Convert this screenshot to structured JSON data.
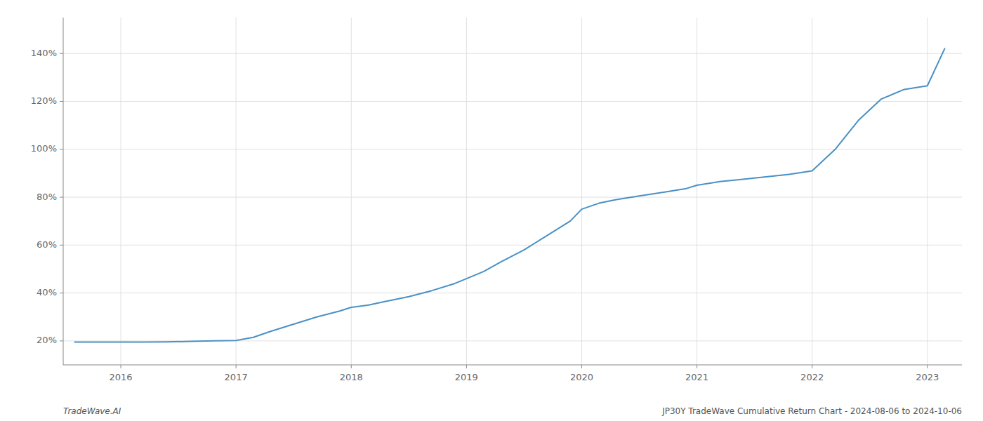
{
  "chart_data": {
    "type": "line",
    "x": [
      2015.6,
      2015.8,
      2016.0,
      2016.2,
      2016.4,
      2016.6,
      2016.8,
      2017.0,
      2017.15,
      2017.3,
      2017.5,
      2017.7,
      2017.9,
      2018.0,
      2018.15,
      2018.3,
      2018.5,
      2018.7,
      2018.9,
      2019.0,
      2019.15,
      2019.3,
      2019.5,
      2019.7,
      2019.9,
      2020.0,
      2020.15,
      2020.3,
      2020.5,
      2020.7,
      2020.9,
      2021.0,
      2021.2,
      2021.4,
      2021.6,
      2021.8,
      2022.0,
      2022.2,
      2022.4,
      2022.6,
      2022.8,
      2023.0,
      2023.15
    ],
    "values": [
      19.5,
      19.5,
      19.5,
      19.5,
      19.6,
      19.8,
      20.0,
      20.2,
      21.5,
      24.0,
      27.0,
      30.0,
      32.5,
      34.0,
      35.0,
      36.5,
      38.5,
      41.0,
      44.0,
      46.0,
      49.0,
      53.0,
      58.0,
      64.0,
      70.0,
      75.0,
      77.5,
      79.0,
      80.5,
      82.0,
      83.5,
      85.0,
      86.5,
      87.5,
      88.5,
      89.5,
      91.0,
      100.0,
      112.0,
      121.0,
      125.0,
      126.5,
      142.0
    ],
    "color": "#4a90c4",
    "xlim": [
      2015.5,
      2023.3
    ],
    "ylim": [
      10,
      155
    ],
    "xticks": [
      2016,
      2017,
      2018,
      2019,
      2020,
      2021,
      2022,
      2023
    ],
    "yticks": [
      {
        "value": 20,
        "label": "20%"
      },
      {
        "value": 40,
        "label": "40%"
      },
      {
        "value": 60,
        "label": "60%"
      },
      {
        "value": 80,
        "label": "80%"
      },
      {
        "value": 100,
        "label": "100%"
      },
      {
        "value": 120,
        "label": "120%"
      },
      {
        "value": 140,
        "label": "140%"
      }
    ],
    "grid": true,
    "annotations": [
      "TradeWave.AI",
      "JP30Y TradeWave Cumulative Return Chart - 2024-08-06 to 2024-10-06"
    ]
  }
}
